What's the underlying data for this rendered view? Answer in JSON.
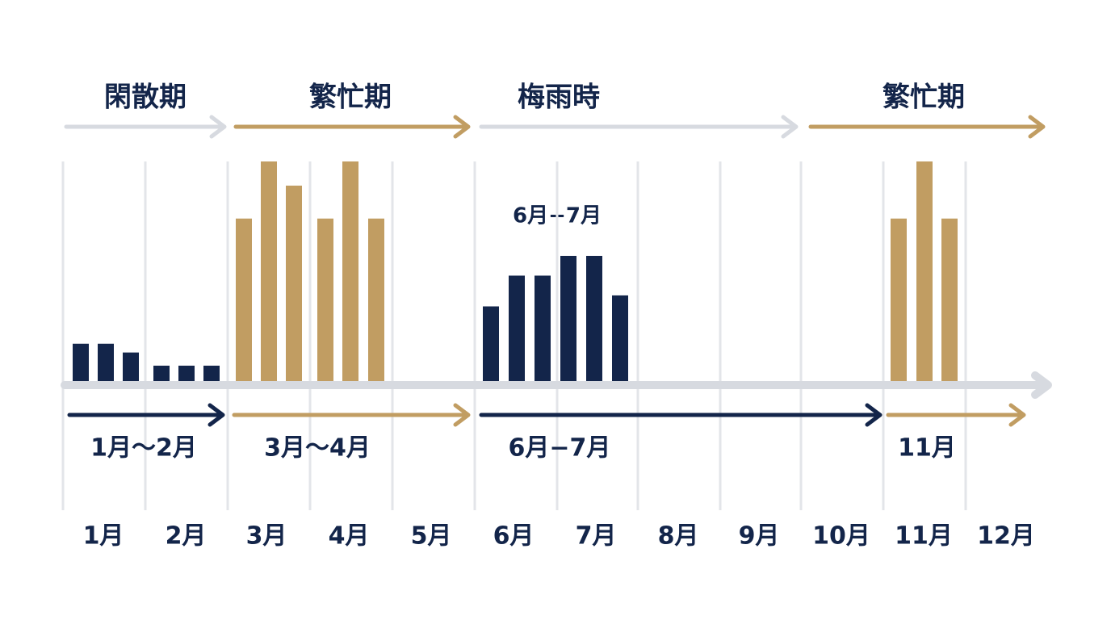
{
  "chart_data": {
    "type": "bar",
    "periods": [
      {
        "label": "閑散期",
        "color": "#d7dae0"
      },
      {
        "label": "繁忙期",
        "color": "#c19d62"
      },
      {
        "label": "梅雨時",
        "color": "#d7dae0"
      },
      {
        "label": "繁忙期",
        "color": "#c19d62"
      }
    ],
    "ranges": [
      {
        "label": "1月〜2月",
        "color": "#13254a"
      },
      {
        "label": "3月〜4月",
        "color": "#c19d62"
      },
      {
        "label": "6月−7月",
        "color": "#13254a"
      },
      {
        "label": "11月",
        "color": "#c19d62"
      }
    ],
    "annotation": "6月−7月",
    "months": [
      "1月",
      "2月",
      "3月",
      "4月",
      "5月",
      "6月",
      "7月",
      "8月",
      "9月",
      "10月",
      "11月",
      "12月"
    ],
    "bar_groups": [
      {
        "color": "#13254a",
        "values": [
          17,
          17,
          13,
          7,
          7,
          7
        ]
      },
      {
        "color": "#c19d62",
        "values": [
          74,
          100,
          89,
          74,
          100,
          74
        ]
      },
      {
        "color": "#13254a",
        "values": [
          34,
          48,
          48,
          57,
          57,
          39
        ]
      },
      {
        "color": "#c19d62",
        "values": [
          74,
          100,
          74
        ]
      }
    ],
    "ylim": [
      0,
      100
    ],
    "axis_color": "#d7dae0"
  }
}
